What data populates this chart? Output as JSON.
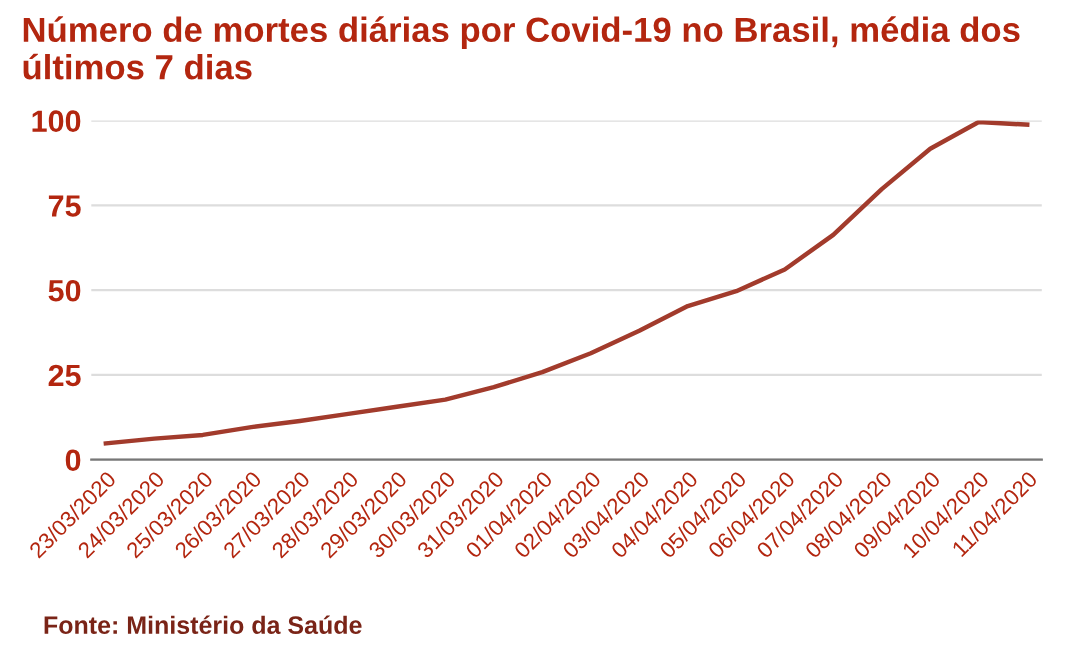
{
  "chart_data": {
    "type": "line",
    "title": "Número de mortes diárias por Covid-19 no Brasil, média dos últimos 7 dias",
    "categories": [
      "23/03/2020",
      "24/03/2020",
      "25/03/2020",
      "26/03/2020",
      "27/03/2020",
      "28/03/2020",
      "29/03/2020",
      "30/03/2020",
      "31/03/2020",
      "01/04/2020",
      "02/04/2020",
      "03/04/2020",
      "04/04/2020",
      "05/04/2020",
      "06/04/2020",
      "07/04/2020",
      "08/04/2020",
      "09/04/2020",
      "10/04/2020",
      "11/04/2020"
    ],
    "series": [
      {
        "color": "#a23b2c",
        "values": [
          4.8,
          6.2,
          7.3,
          9.6,
          11.4,
          13.5,
          15.6,
          17.7,
          21.4,
          25.8,
          31.4,
          38,
          45.3,
          49.7,
          56.1,
          66.3,
          79.8,
          91.7,
          99.6,
          98.8
        ]
      }
    ],
    "ylim": [
      0,
      100
    ],
    "yticks": [
      0,
      25,
      50,
      75,
      100
    ],
    "grid": "y",
    "legend": false,
    "marker": "none",
    "line_style": "solid",
    "annotations": [
      "Fonte: Ministério da Saúde"
    ]
  }
}
